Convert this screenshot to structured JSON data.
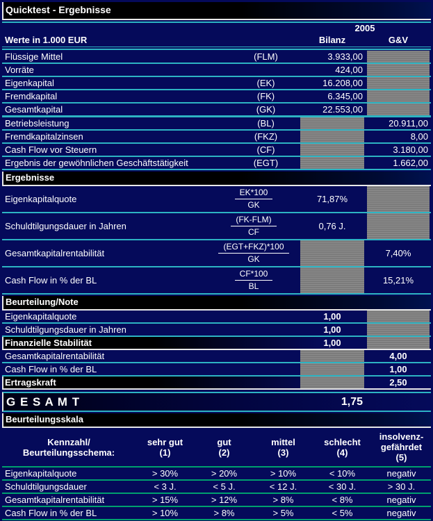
{
  "title": "Quicktest - Ergebnisse",
  "colors": {
    "background_navy": "#050a5a",
    "section_bar_black": "#000000",
    "separator_cyan": "#2db4c3",
    "separator_green": "#00a06e",
    "disabled_cell_gray": "#7f7f7f",
    "text": "#ffffff"
  },
  "values_section": {
    "header": {
      "year": "2005",
      "unit_label": "Werte in 1.000 EUR",
      "col_bilanz": "Bilanz",
      "col_gv": "G&V"
    },
    "rows": [
      {
        "label": "Flüssige Mittel",
        "code": "(FLM)",
        "value": "3.933,00"
      },
      {
        "label": "Vorräte",
        "code": "",
        "value": "424,00"
      },
      {
        "label": "Eigenkapital",
        "code": "(EK)",
        "value": "16.208,00"
      },
      {
        "label": "Fremdkapital",
        "code": "(FK)",
        "value": "6.345,00"
      },
      {
        "label": "Gesamtkapital",
        "code": "(GK)",
        "value": "22.553,00"
      },
      {
        "label": "Betriebsleistung",
        "code": "(BL)",
        "value": "20.911,00"
      },
      {
        "label": "Fremdkapitalzinsen",
        "code": "(FKZ)",
        "value": "8,00"
      },
      {
        "label": "Cash Flow vor Steuern",
        "code": "(CF)",
        "value": "3.180,00"
      },
      {
        "label": "Ergebnis der gewöhnlichen Geschäftstätigkeit",
        "code": "(EGT)",
        "value": "1.662,00"
      }
    ]
  },
  "ergebnisse_section": {
    "title": "Ergebnisse",
    "rows": [
      {
        "label": "Eigenkapitalquote",
        "numerator": "EK*100",
        "denominator": "GK",
        "value": "71,87%"
      },
      {
        "label": "Schuldtilgungsdauer in Jahren",
        "numerator": "(FK-FLM)",
        "denominator": "CF",
        "value": "0,76 J."
      },
      {
        "label": "Gesamtkapitalrentabilität",
        "numerator": "(EGT+FKZ)*100",
        "denominator": "GK",
        "value": "7,40%"
      },
      {
        "label": "Cash Flow in % der BL",
        "numerator": "CF*100",
        "denominator": "BL",
        "value": "15,21%"
      }
    ]
  },
  "note_section": {
    "title": "Beurteilung/Note",
    "rows": [
      {
        "label": "Eigenkapitalquote",
        "value": "1,00"
      },
      {
        "label": "Schuldtilgungsdauer in Jahren",
        "value": "1,00"
      },
      {
        "label": "Finanzielle Stabilität",
        "value": "1,00"
      },
      {
        "label": "Gesamtkapitalrentabilität",
        "value": "4,00"
      },
      {
        "label": "Cash Flow in % der BL",
        "value": "1,00"
      },
      {
        "label": "Ertragskraft",
        "value": "2,50"
      }
    ]
  },
  "gesamt": {
    "label": "G E S A M T",
    "value": "1,75"
  },
  "scale_section": {
    "title": "Beurteilungsskala",
    "header": {
      "label": "Kennzahl/\nBeurteilungsschema:",
      "cols": [
        "sehr gut\n(1)",
        "gut\n(2)",
        "mittel\n(3)",
        "schlecht\n(4)",
        "insolvenz-\ngefährdet\n(5)"
      ]
    },
    "rows": [
      {
        "label": "Eigenkapitalquote",
        "values": [
          "> 30%",
          "> 20%",
          "> 10%",
          "< 10%",
          "negativ"
        ]
      },
      {
        "label": "Schuldtilgungsdauer",
        "values": [
          "< 3 J.",
          "< 5 J.",
          "< 12 J.",
          "< 30 J.",
          "> 30 J."
        ]
      },
      {
        "label": "Gesamtkapitalrentabilität",
        "values": [
          "> 15%",
          "> 12%",
          "> 8%",
          "< 8%",
          "negativ"
        ]
      },
      {
        "label": "Cash Flow in % der BL",
        "values": [
          "> 10%",
          "> 8%",
          "> 5%",
          "< 5%",
          "negativ"
        ]
      }
    ]
  }
}
